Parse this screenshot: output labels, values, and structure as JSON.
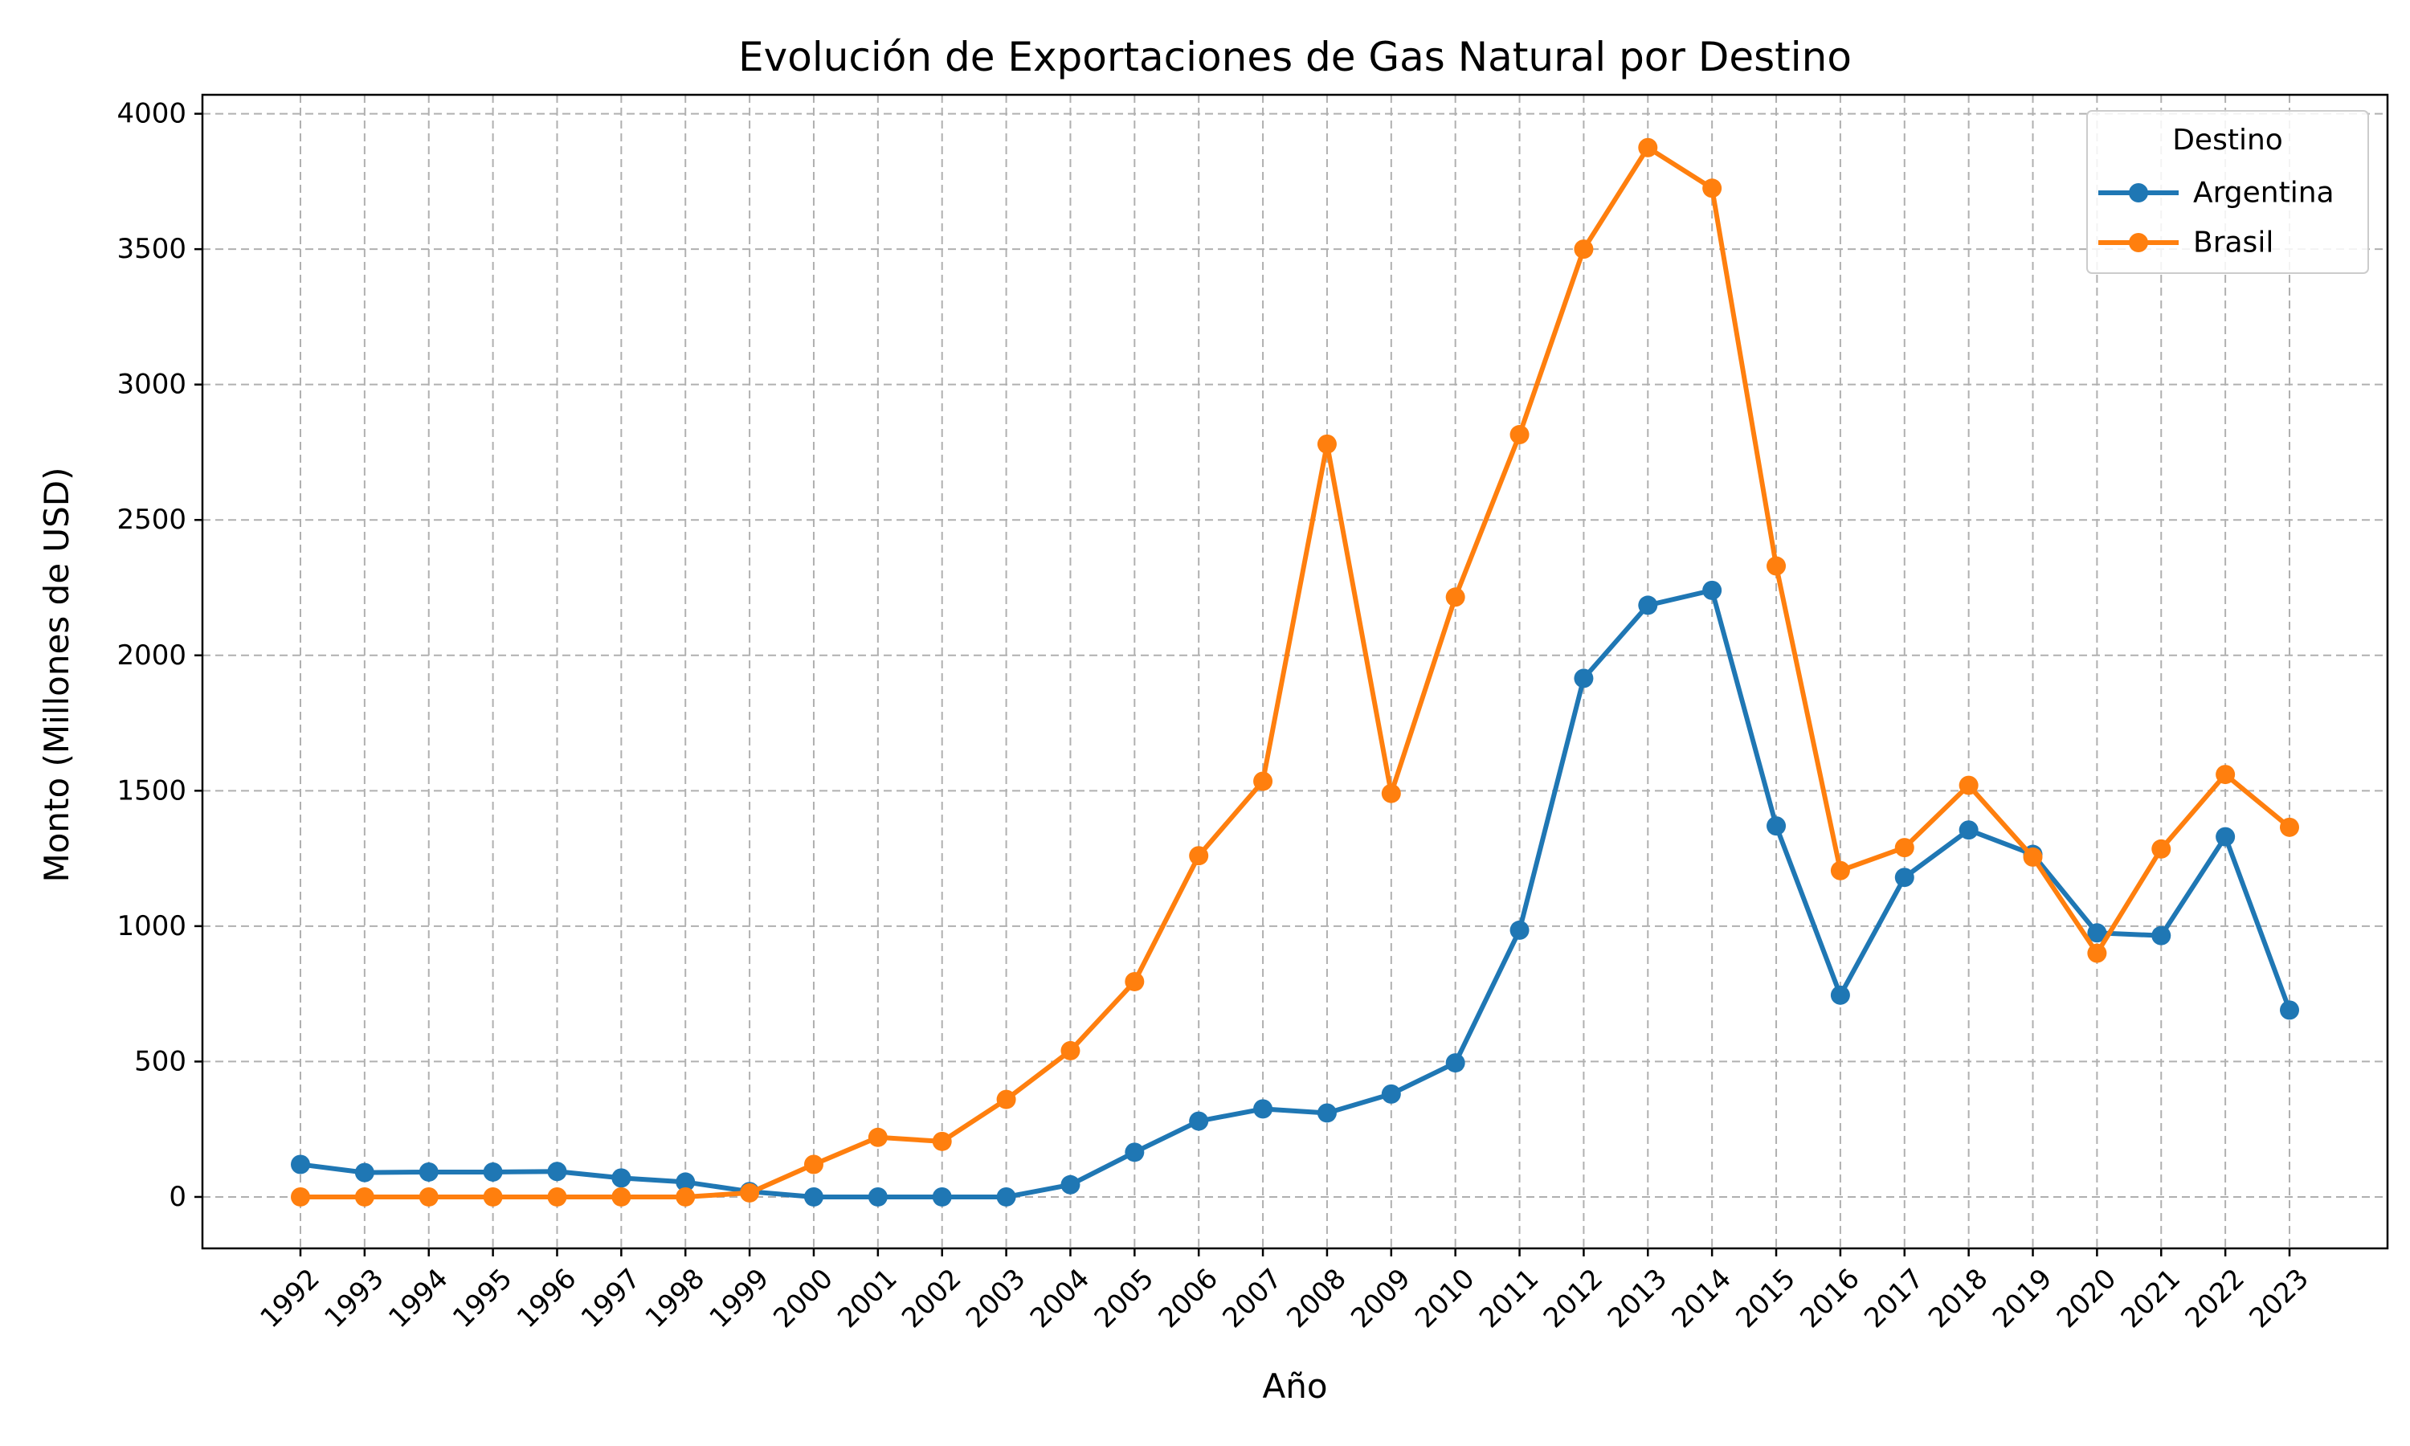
{
  "chart_data": {
    "type": "line",
    "title": "Evolución de Exportaciones de Gas Natural por Destino",
    "xlabel": "Año",
    "ylabel": "Monto (Millones de USD)",
    "legend_title": "Destino",
    "legend_position": "top-right",
    "grid": true,
    "ylim": [
      -190,
      4070
    ],
    "yticks": [
      0,
      500,
      1000,
      1500,
      2000,
      2500,
      3000,
      3500,
      4000
    ],
    "categories": [
      "1992",
      "1993",
      "1994",
      "1995",
      "1996",
      "1997",
      "1998",
      "1999",
      "2000",
      "2001",
      "2002",
      "2003",
      "2004",
      "2005",
      "2006",
      "2007",
      "2008",
      "2009",
      "2010",
      "2011",
      "2012",
      "2013",
      "2014",
      "2015",
      "2016",
      "2017",
      "2018",
      "2019",
      "2020",
      "2021",
      "2022",
      "2023"
    ],
    "series": [
      {
        "name": "Argentina",
        "color": "#1f77b4",
        "values": [
          120,
          90,
          92,
          92,
          94,
          70,
          55,
          20,
          0,
          0,
          0,
          0,
          45,
          165,
          280,
          325,
          310,
          380,
          495,
          985,
          1915,
          2185,
          2240,
          1370,
          745,
          1180,
          1355,
          1265,
          975,
          965,
          1330,
          690
        ]
      },
      {
        "name": "Brasil",
        "color": "#ff7f0e",
        "values": [
          0,
          0,
          0,
          0,
          0,
          0,
          0,
          15,
          120,
          220,
          205,
          360,
          540,
          795,
          1260,
          1535,
          2780,
          1490,
          2215,
          2815,
          3500,
          3875,
          3725,
          2330,
          1205,
          1290,
          1520,
          1255,
          900,
          1285,
          1560,
          1365
        ]
      }
    ]
  }
}
